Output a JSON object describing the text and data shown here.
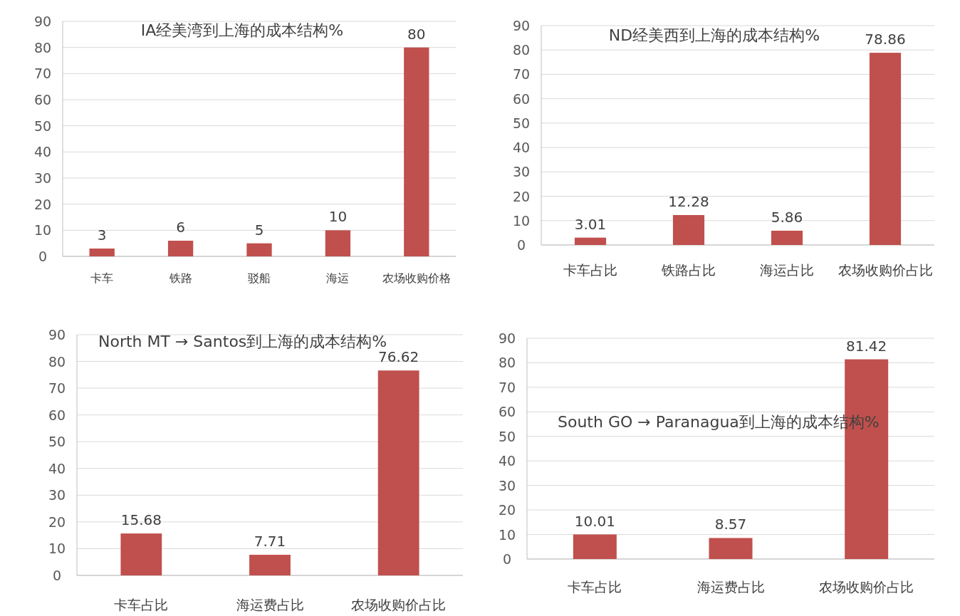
{
  "chart_data": [
    {
      "type": "bar",
      "title": "IA经美湾到上海的成本结构%",
      "categories": [
        "卡车",
        "铁路",
        "驳船",
        "海运",
        "农场收购价格"
      ],
      "values": [
        3,
        6,
        5,
        10,
        80
      ],
      "color": "#c0504d",
      "ylim": [
        0,
        90
      ],
      "yticks": [
        0,
        10,
        20,
        30,
        40,
        50,
        60,
        70,
        80,
        90
      ],
      "grid": "y",
      "data_labels": true
    },
    {
      "type": "bar",
      "title": "ND经美西到上海的成本结构%",
      "categories": [
        "卡车占比",
        "铁路占比",
        "海运占比",
        "农场收购价占比"
      ],
      "values": [
        3.01,
        12.28,
        5.86,
        78.86
      ],
      "color": "#c0504d",
      "ylim": [
        0,
        90
      ],
      "yticks": [
        0,
        10,
        20,
        30,
        40,
        50,
        60,
        70,
        80,
        90
      ],
      "grid": "y",
      "data_labels": true
    },
    {
      "type": "bar",
      "title": "North MT → Santos到上海的成本结构%",
      "categories": [
        "卡车占比",
        "海运费占比",
        "农场收购价占比"
      ],
      "values": [
        15.68,
        7.71,
        76.62
      ],
      "color": "#c0504d",
      "ylim": [
        0,
        90
      ],
      "yticks": [
        0,
        10,
        20,
        30,
        40,
        50,
        60,
        70,
        80,
        90
      ],
      "grid": "y",
      "data_labels": true
    },
    {
      "type": "bar",
      "title": "South GO → Paranagua到上海的成本结构%",
      "categories": [
        "卡车占比",
        "海运费占比",
        "农场收购价占比"
      ],
      "values": [
        10.01,
        8.57,
        81.42
      ],
      "color": "#c0504d",
      "ylim": [
        0,
        90
      ],
      "yticks": [
        0,
        10,
        20,
        30,
        40,
        50,
        60,
        70,
        80,
        90
      ],
      "grid": "y",
      "data_labels": true
    }
  ]
}
